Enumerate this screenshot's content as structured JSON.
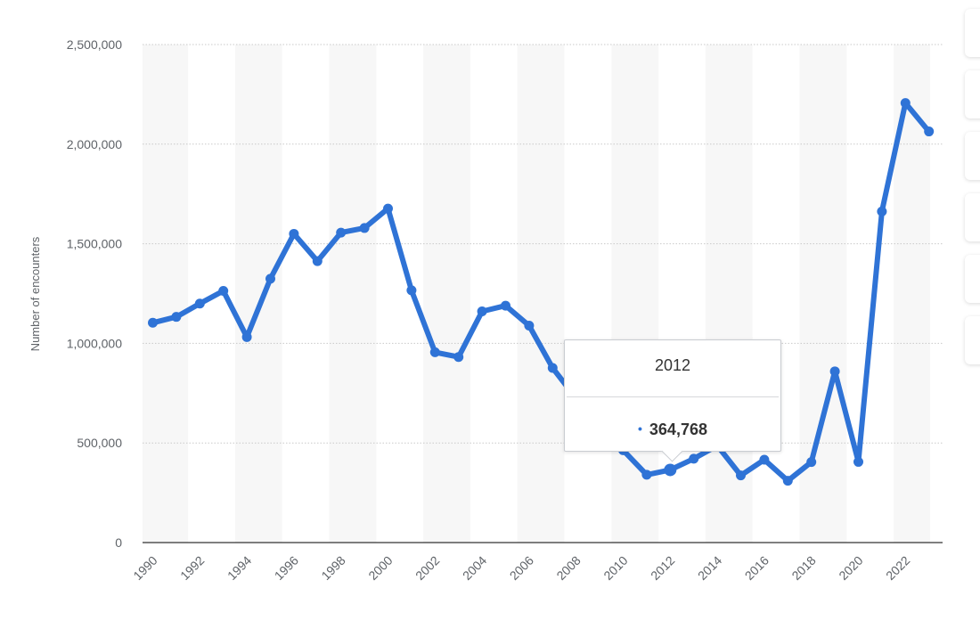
{
  "chart_data": {
    "type": "line",
    "title": "",
    "xlabel": "",
    "ylabel": "Number of encounters",
    "x": [
      1990,
      1991,
      1992,
      1993,
      1994,
      1995,
      1996,
      1997,
      1998,
      1999,
      2000,
      2001,
      2002,
      2003,
      2004,
      2005,
      2006,
      2007,
      2008,
      2009,
      2010,
      2011,
      2012,
      2013,
      2014,
      2015,
      2016,
      2017,
      2018,
      2019,
      2020,
      2021,
      2022,
      2023
    ],
    "series": [
      {
        "values": [
          1103353,
          1132933,
          1199560,
          1263490,
          1031668,
          1324202,
          1549876,
          1412953,
          1555776,
          1579010,
          1676438,
          1266214,
          955310,
          931557,
          1160395,
          1189075,
          1089092,
          876704,
          723825,
          556041,
          463382,
          340252,
          364768,
          420789,
          486651,
          337117,
          415816,
          310531,
          404142,
          859501,
          405036,
          1662167,
          2206436,
          2063692
        ]
      }
    ],
    "x_tick_labels": [
      "1990",
      "1992",
      "1994",
      "1996",
      "1998",
      "2000",
      "2002",
      "2004",
      "2006",
      "2008",
      "2010",
      "2012",
      "2014",
      "2016",
      "2018",
      "2020",
      "2022"
    ],
    "y_tick_labels": [
      "0",
      "500,000",
      "1,000,000",
      "1,500,000",
      "2,000,000",
      "2,500,000"
    ],
    "y_ticks": [
      0,
      500000,
      1000000,
      1500000,
      2000000,
      2500000
    ],
    "ylim": [
      0,
      2500000
    ],
    "grid": true,
    "line_color": "#2f73d6",
    "band_color": "#f7f7f7"
  },
  "tooltip": {
    "year": "2012",
    "value": "364,768",
    "dot": "•"
  },
  "side_toolbar": {
    "buttons": [
      "notification-icon",
      "favorite-icon",
      "settings-icon",
      "share-icon",
      "fullscreen-icon",
      "print-icon"
    ]
  }
}
